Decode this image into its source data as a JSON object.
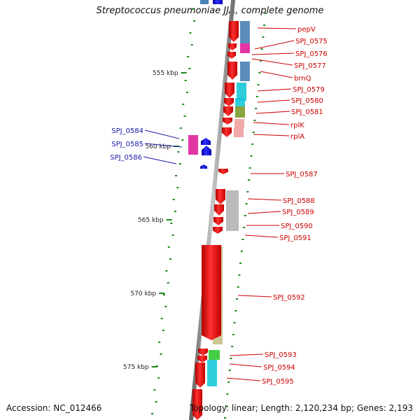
{
  "title": "Streptococcus pneumoniae JJA, complete genome",
  "footer": {
    "accession": "Accession: NC_012466",
    "topology": "Topology: linear; Length: 2,120,234 bp; Genes: 2,193"
  },
  "scale_labels": [
    "555 kbp",
    "560 kbp",
    "565 kbp",
    "570 kbp",
    "575 kbp"
  ],
  "genes": [
    {
      "name": "pepV",
      "strand": "minus",
      "color": "#cc0000"
    },
    {
      "name": "SPJ_0575",
      "strand": "minus",
      "color": "#cc0000"
    },
    {
      "name": "SPJ_0576",
      "strand": "minus",
      "color": "#cc0000"
    },
    {
      "name": "SPJ_0577",
      "strand": "minus",
      "color": "#cc0000"
    },
    {
      "name": "brnQ",
      "strand": "minus",
      "color": "#cc0000"
    },
    {
      "name": "SPJ_0579",
      "strand": "minus",
      "color": "#cc0000"
    },
    {
      "name": "SPJ_0580",
      "strand": "minus",
      "color": "#cc0000"
    },
    {
      "name": "SPJ_0581",
      "strand": "minus",
      "color": "#cc0000"
    },
    {
      "name": "rplK",
      "strand": "minus",
      "color": "#cc0000"
    },
    {
      "name": "rplA",
      "strand": "minus",
      "color": "#cc0000"
    },
    {
      "name": "SPJ_0584",
      "strand": "plus",
      "color": "#1a1aaa"
    },
    {
      "name": "SPJ_0585",
      "strand": "plus",
      "color": "#1a1aaa"
    },
    {
      "name": "SPJ_0586",
      "strand": "plus",
      "color": "#1a1aaa"
    },
    {
      "name": "SPJ_0587",
      "strand": "minus",
      "color": "#cc0000"
    },
    {
      "name": "SPJ_0588",
      "strand": "minus",
      "color": "#cc0000"
    },
    {
      "name": "SPJ_0589",
      "strand": "minus",
      "color": "#cc0000"
    },
    {
      "name": "SPJ_0590",
      "strand": "minus",
      "color": "#cc0000"
    },
    {
      "name": "SPJ_0591",
      "strand": "minus",
      "color": "#cc0000"
    },
    {
      "name": "SPJ_0592",
      "strand": "minus",
      "color": "#cc0000"
    },
    {
      "name": "SPJ_0593",
      "strand": "minus",
      "color": "#cc0000"
    },
    {
      "name": "SPJ_0594",
      "strand": "minus",
      "color": "#cc0000"
    },
    {
      "name": "SPJ_0595",
      "strand": "minus",
      "color": "#cc0000"
    }
  ],
  "colors": {
    "minus_strand": "#ee0000",
    "plus_strand": "#0000ee",
    "minus_label": "#cc0000",
    "plus_label": "#1a1aaa",
    "backbone": "#808080",
    "tick": "#1a8a1a",
    "cog_blue": "#4a82b4",
    "cog_magenta": "#e0209a",
    "cog_cyan": "#1ac8d8",
    "cog_olive": "#7a9a28",
    "cog_pink": "#f0a0a0",
    "cog_gray": "#b4b4b4",
    "cog_khaki": "#c8c088",
    "cog_green": "#30c830"
  }
}
